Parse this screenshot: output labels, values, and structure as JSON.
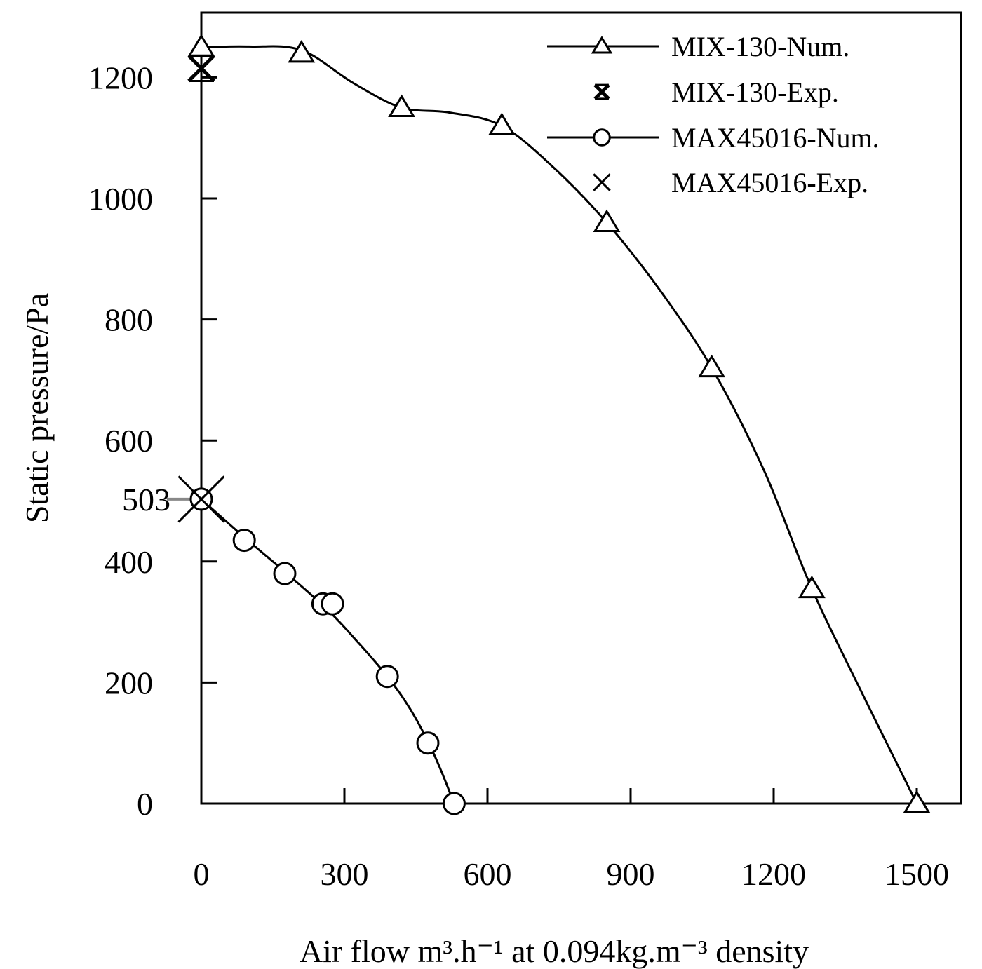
{
  "chart_data": {
    "type": "line",
    "xlabel": "Air flow  m³.h⁻¹ at 0.094kg.m⁻³ density",
    "ylabel": "Static pressure/Pa",
    "xlim": [
      0,
      1570
    ],
    "ylim": [
      0,
      1300
    ],
    "xticks": [
      0,
      300,
      600,
      900,
      1200,
      1500
    ],
    "yticks": [
      0,
      200,
      400,
      600,
      800,
      1000,
      1200
    ],
    "extra_ytick": {
      "value": 503,
      "label": "503"
    },
    "grid": false,
    "legend_position": "top-right",
    "series": [
      {
        "name": "MIX-130-Num.",
        "marker": "triangle",
        "line": true,
        "points": [
          [
            0,
            1250
          ],
          [
            210,
            1240
          ],
          [
            420,
            1150
          ],
          [
            630,
            1120
          ],
          [
            850,
            960
          ],
          [
            1070,
            720
          ],
          [
            1280,
            355
          ],
          [
            1500,
            0
          ]
        ],
        "curve": [
          [
            0,
            1250
          ],
          [
            100,
            1251
          ],
          [
            210,
            1245
          ],
          [
            320,
            1190
          ],
          [
            420,
            1150
          ],
          [
            520,
            1142
          ],
          [
            630,
            1120
          ],
          [
            740,
            1050
          ],
          [
            850,
            960
          ],
          [
            960,
            850
          ],
          [
            1070,
            720
          ],
          [
            1180,
            550
          ],
          [
            1280,
            355
          ],
          [
            1390,
            175
          ],
          [
            1500,
            0
          ]
        ]
      },
      {
        "name": "MIX-130-Exp.",
        "marker": "bold-x",
        "line": false,
        "points": [
          [
            0,
            1215
          ]
        ]
      },
      {
        "name": "MAX45016-Num.",
        "marker": "circle",
        "line": true,
        "points": [
          [
            0,
            503
          ],
          [
            90,
            435
          ],
          [
            175,
            380
          ],
          [
            255,
            330
          ],
          [
            275,
            330
          ],
          [
            390,
            210
          ],
          [
            475,
            100
          ],
          [
            530,
            0
          ]
        ],
        "curve": [
          [
            0,
            503
          ],
          [
            90,
            440
          ],
          [
            175,
            383
          ],
          [
            265,
            320
          ],
          [
            330,
            265
          ],
          [
            390,
            210
          ],
          [
            435,
            160
          ],
          [
            475,
            103
          ],
          [
            505,
            50
          ],
          [
            530,
            0
          ]
        ]
      },
      {
        "name": "MAX45016-Exp.",
        "marker": "x",
        "line": false,
        "points": [
          [
            0,
            503
          ]
        ]
      }
    ]
  }
}
